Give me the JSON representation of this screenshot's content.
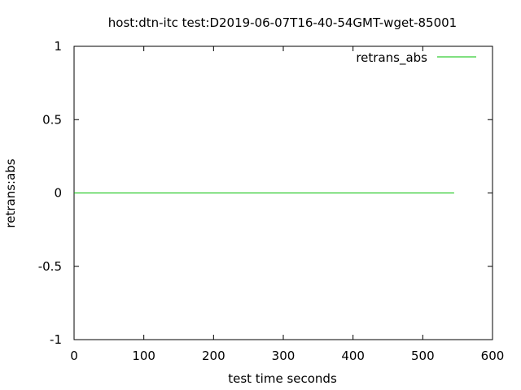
{
  "chart_data": {
    "type": "line",
    "title": "host:dtn-itc test:D2019-06-07T16-40-54GMT-wget-85001",
    "xlabel": "test time seconds",
    "ylabel": "retrans:abs",
    "xlim": [
      0,
      600
    ],
    "ylim": [
      -1,
      1
    ],
    "xticks": [
      0,
      100,
      200,
      300,
      400,
      500,
      600
    ],
    "yticks": [
      -1,
      -0.5,
      0,
      0.5,
      1
    ],
    "xtick_labels": [
      "0",
      "100",
      "200",
      "300",
      "400",
      "500",
      "600"
    ],
    "ytick_labels": [
      "-1",
      "-0.5",
      "0",
      "0.5",
      "1"
    ],
    "grid": false,
    "legend_position": "top-right",
    "series": [
      {
        "name": "retrans_abs",
        "color": "#00c000",
        "x": [
          0,
          545
        ],
        "y": [
          0,
          0
        ]
      }
    ]
  }
}
